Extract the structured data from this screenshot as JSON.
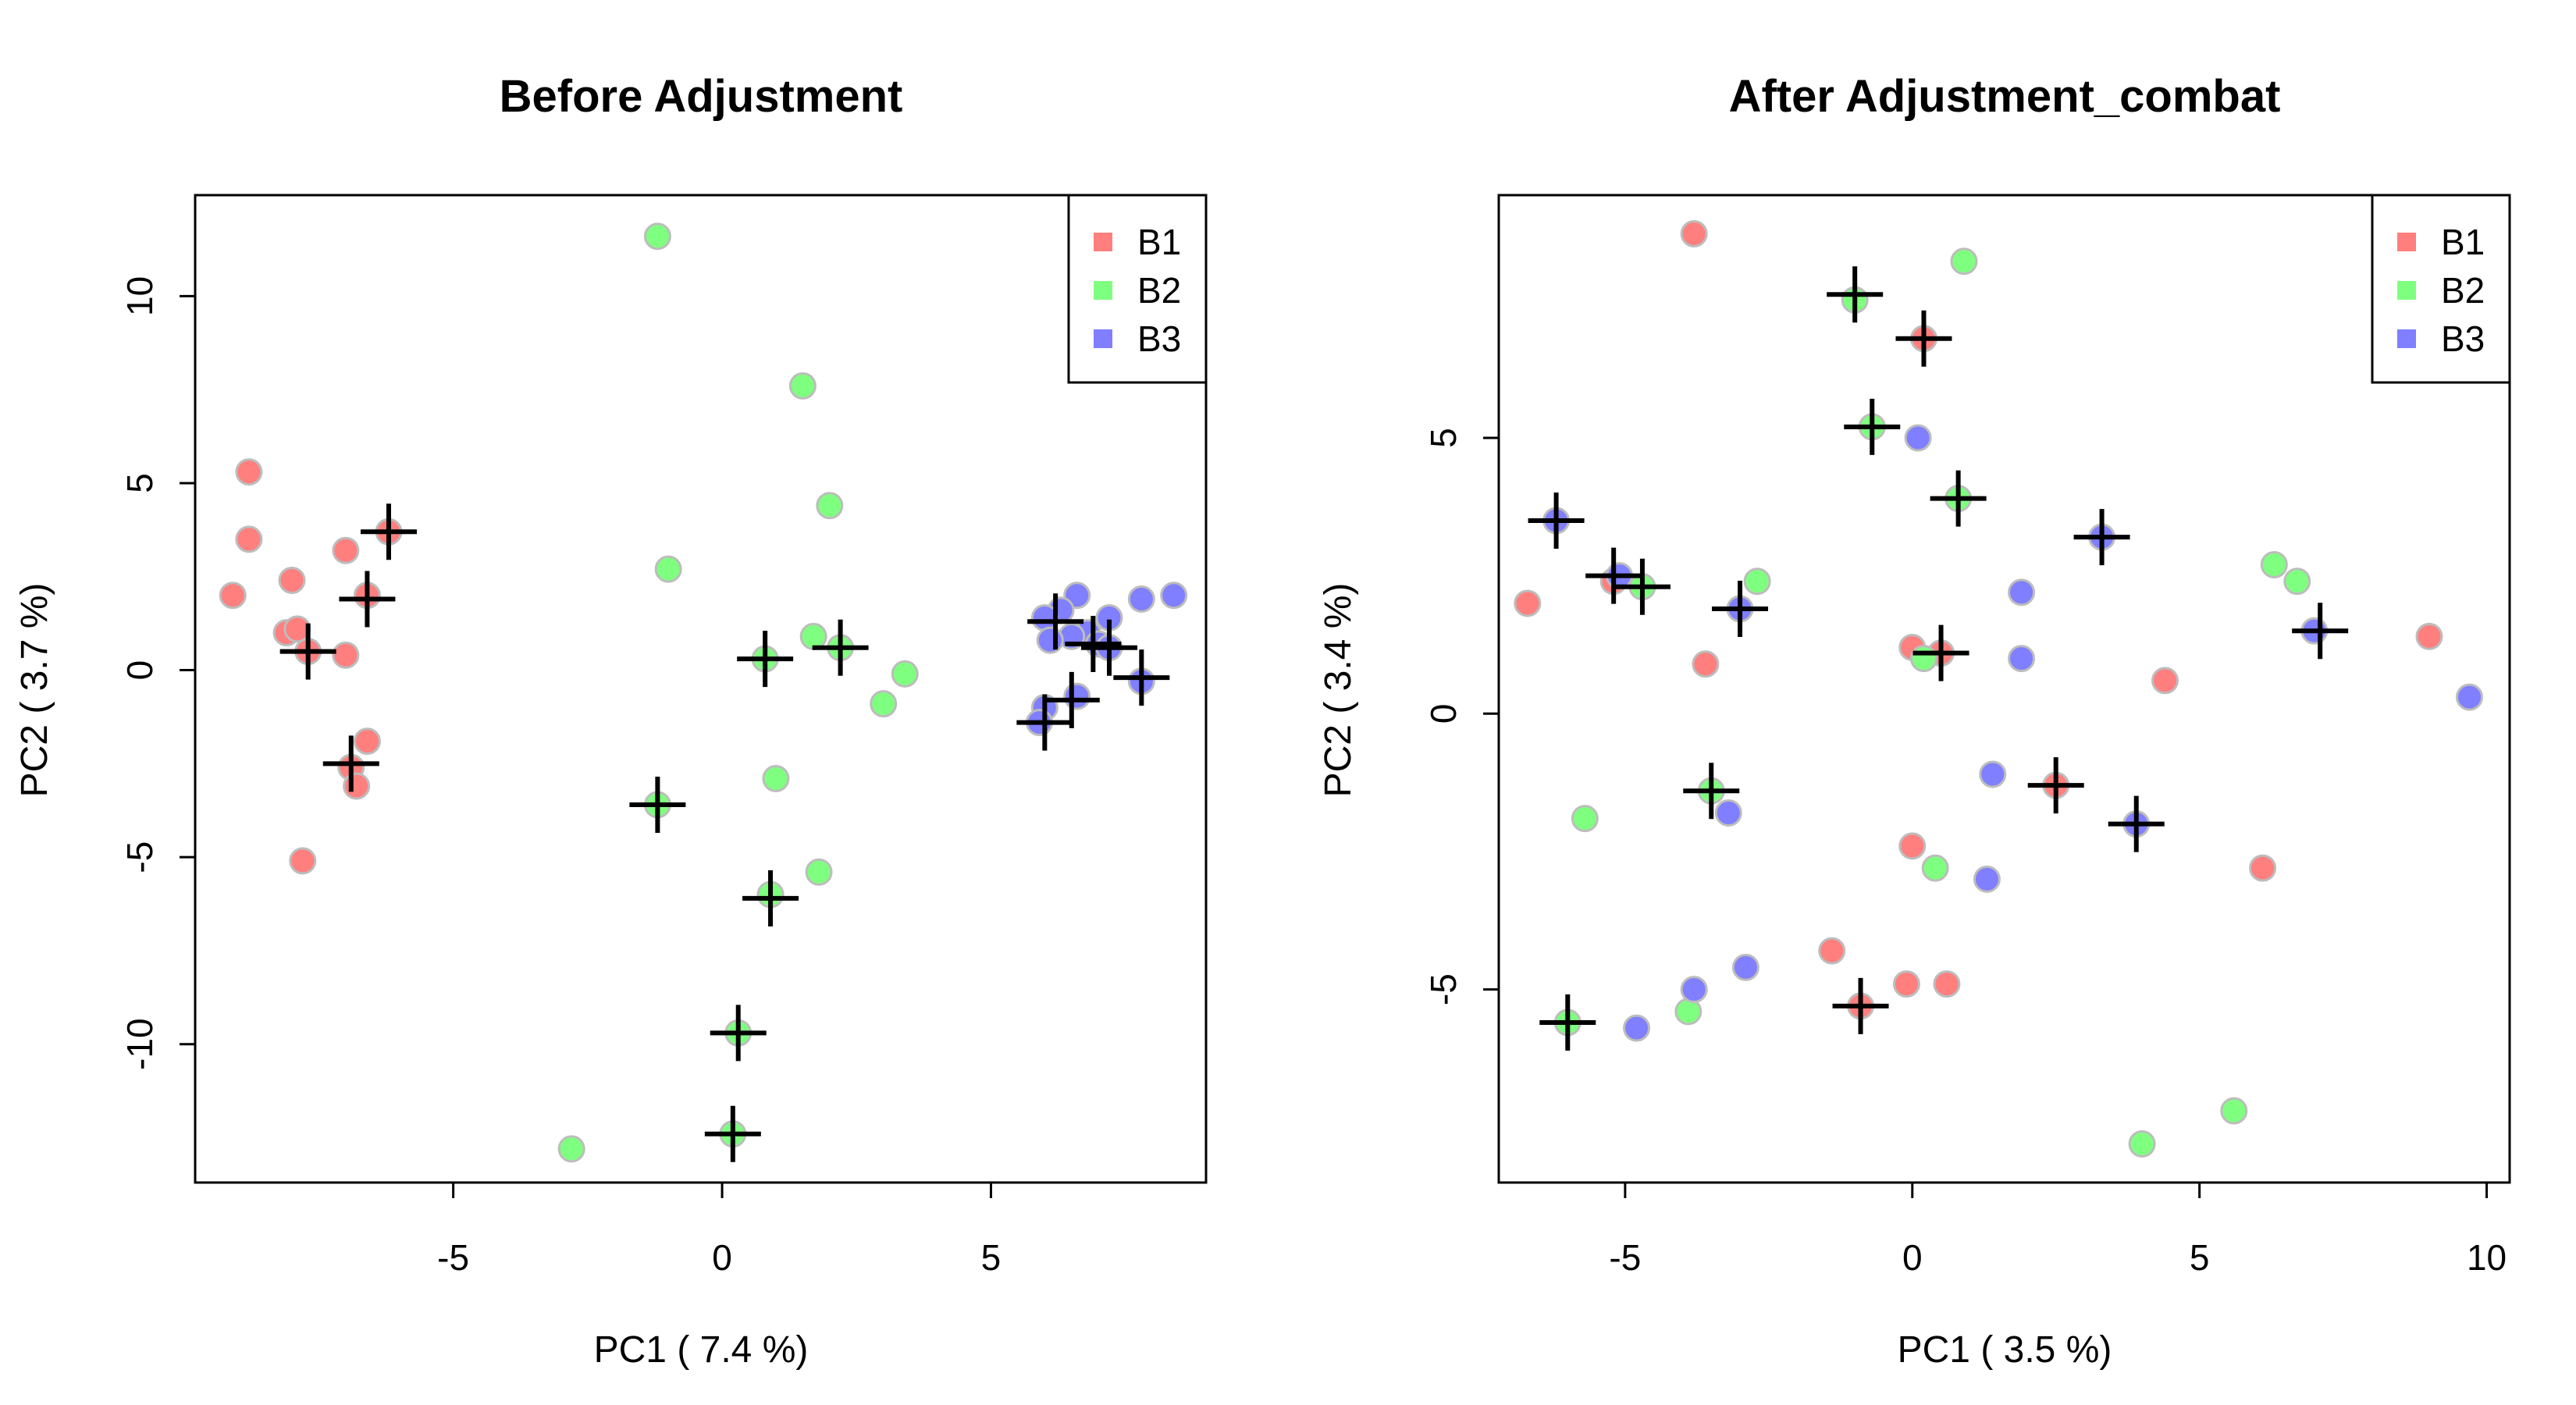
{
  "chart_data": [
    {
      "type": "scatter",
      "title": "Before Adjustment",
      "xlabel": "PC1 ( 7.4 %)",
      "ylabel": "PC2 ( 3.7 %)",
      "xlim": [
        -9.8,
        9.0
      ],
      "ylim": [
        -13.7,
        12.7
      ],
      "xticks": [
        -5,
        0,
        5
      ],
      "yticks": [
        -10,
        -5,
        0,
        5,
        10
      ],
      "grid": false,
      "legend": {
        "position": "top-right",
        "entries": [
          "B1",
          "B2",
          "B3"
        ]
      },
      "series": [
        {
          "name": "B1",
          "color": "#FF7F7F",
          "points": [
            [
              -8.8,
              5.3
            ],
            [
              -8.8,
              3.5
            ],
            [
              -9.1,
              2.0
            ],
            [
              -8.0,
              2.4
            ],
            [
              -7.0,
              3.2
            ],
            [
              -6.2,
              3.7
            ],
            [
              -6.6,
              2.0
            ],
            [
              -8.1,
              1.0
            ],
            [
              -7.9,
              1.1
            ],
            [
              -7.7,
              0.5
            ],
            [
              -7.0,
              0.4
            ],
            [
              -6.6,
              -1.9
            ],
            [
              -6.9,
              -2.6
            ],
            [
              -6.8,
              -3.1
            ],
            [
              -7.8,
              -5.1
            ]
          ],
          "marked": [
            [
              -7.7,
              0.5
            ],
            [
              -6.6,
              1.9
            ],
            [
              -6.2,
              3.7
            ],
            [
              -6.9,
              -2.5
            ]
          ]
        },
        {
          "name": "B2",
          "color": "#7FFF7F",
          "points": [
            [
              -1.2,
              11.6
            ],
            [
              1.5,
              7.6
            ],
            [
              2.0,
              4.4
            ],
            [
              -1.0,
              2.7
            ],
            [
              1.7,
              0.9
            ],
            [
              2.2,
              0.6
            ],
            [
              0.8,
              0.3
            ],
            [
              3.4,
              -0.1
            ],
            [
              3.0,
              -0.9
            ],
            [
              1.0,
              -2.9
            ],
            [
              -1.2,
              -3.6
            ],
            [
              1.8,
              -5.4
            ],
            [
              0.9,
              -6.0
            ],
            [
              0.3,
              -9.7
            ],
            [
              0.2,
              -12.4
            ],
            [
              -2.8,
              -12.8
            ]
          ],
          "marked": [
            [
              0.8,
              0.3
            ],
            [
              2.2,
              0.6
            ],
            [
              -1.2,
              -3.6
            ],
            [
              0.9,
              -6.1
            ],
            [
              0.3,
              -9.7
            ],
            [
              0.2,
              -12.4
            ]
          ]
        },
        {
          "name": "B3",
          "color": "#7F7FFF",
          "points": [
            [
              6.6,
              2.0
            ],
            [
              8.4,
              2.0
            ],
            [
              7.8,
              1.9
            ],
            [
              6.3,
              1.6
            ],
            [
              6.0,
              1.4
            ],
            [
              7.2,
              1.4
            ],
            [
              6.8,
              1.0
            ],
            [
              6.5,
              0.9
            ],
            [
              7.0,
              0.7
            ],
            [
              6.1,
              0.8
            ],
            [
              7.2,
              0.6
            ],
            [
              7.8,
              -0.3
            ],
            [
              6.6,
              -0.7
            ],
            [
              6.0,
              -1.0
            ],
            [
              5.9,
              -1.4
            ]
          ],
          "marked": [
            [
              6.2,
              1.3
            ],
            [
              6.9,
              0.7
            ],
            [
              7.2,
              0.6
            ],
            [
              7.8,
              -0.2
            ],
            [
              6.5,
              -0.8
            ],
            [
              6.0,
              -1.4
            ]
          ]
        }
      ]
    },
    {
      "type": "scatter",
      "title": "After Adjustment_combat",
      "xlabel": "PC1 ( 3.5 %)",
      "ylabel": "PC2 ( 3.4 %)",
      "xlim": [
        -7.2,
        10.4
      ],
      "ylim": [
        -8.5,
        9.4
      ],
      "xticks": [
        -5,
        0,
        5,
        10
      ],
      "yticks": [
        -5,
        0,
        5
      ],
      "grid": false,
      "legend": {
        "position": "top-right",
        "entries": [
          "B1",
          "B2",
          "B3"
        ]
      },
      "series": [
        {
          "name": "B1",
          "color": "#FF7F7F",
          "points": [
            [
              -3.8,
              8.7
            ],
            [
              0.2,
              6.8
            ],
            [
              -6.7,
              2.0
            ],
            [
              -5.2,
              2.4
            ],
            [
              0.0,
              1.2
            ],
            [
              0.5,
              1.1
            ],
            [
              -3.6,
              0.9
            ],
            [
              9.0,
              1.4
            ],
            [
              4.4,
              0.6
            ],
            [
              2.5,
              -1.3
            ],
            [
              -0.0,
              -2.4
            ],
            [
              6.1,
              -2.8
            ],
            [
              -1.4,
              -4.3
            ],
            [
              -0.9,
              -5.3
            ],
            [
              -0.1,
              -4.9
            ],
            [
              0.6,
              -4.9
            ]
          ],
          "marked": [
            [
              0.2,
              6.8
            ],
            [
              0.5,
              1.1
            ],
            [
              2.5,
              -1.3
            ],
            [
              -0.9,
              -5.3
            ]
          ]
        },
        {
          "name": "B2",
          "color": "#7FFF7F",
          "points": [
            [
              0.9,
              8.2
            ],
            [
              -1.0,
              7.5
            ],
            [
              -0.7,
              5.2
            ],
            [
              0.8,
              3.9
            ],
            [
              -2.7,
              2.4
            ],
            [
              -4.7,
              2.3
            ],
            [
              6.3,
              2.7
            ],
            [
              6.7,
              2.4
            ],
            [
              0.2,
              1.0
            ],
            [
              -3.5,
              -1.4
            ],
            [
              -5.7,
              -1.9
            ],
            [
              0.4,
              -2.8
            ],
            [
              -3.9,
              -5.4
            ],
            [
              -6.0,
              -5.6
            ],
            [
              5.6,
              -7.2
            ],
            [
              4.0,
              -7.8
            ]
          ],
          "marked": [
            [
              -1.0,
              7.6
            ],
            [
              -0.7,
              5.2
            ],
            [
              0.8,
              3.9
            ],
            [
              -4.7,
              2.3
            ],
            [
              -3.5,
              -1.4
            ],
            [
              -6.0,
              -5.6
            ]
          ]
        },
        {
          "name": "B3",
          "color": "#7F7FFF",
          "points": [
            [
              0.1,
              5.0
            ],
            [
              -6.2,
              3.5
            ],
            [
              3.3,
              3.2
            ],
            [
              -5.1,
              2.5
            ],
            [
              1.9,
              2.2
            ],
            [
              -3.0,
              1.9
            ],
            [
              7.0,
              1.5
            ],
            [
              1.9,
              1.0
            ],
            [
              9.7,
              0.3
            ],
            [
              1.4,
              -1.1
            ],
            [
              -3.2,
              -1.8
            ],
            [
              3.9,
              -2.0
            ],
            [
              1.3,
              -3.0
            ],
            [
              -2.9,
              -4.6
            ],
            [
              -3.8,
              -5.0
            ],
            [
              -4.8,
              -5.7
            ]
          ],
          "marked": [
            [
              -6.2,
              3.5
            ],
            [
              3.3,
              3.2
            ],
            [
              -5.2,
              2.5
            ],
            [
              -3.0,
              1.9
            ],
            [
              7.1,
              1.5
            ],
            [
              3.9,
              -2.0
            ]
          ]
        }
      ]
    }
  ]
}
